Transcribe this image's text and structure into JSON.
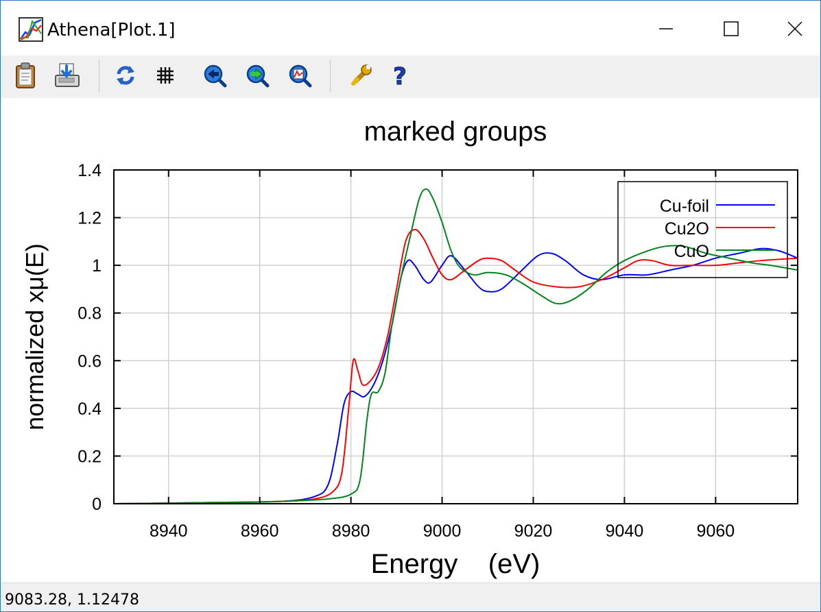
{
  "window": {
    "title": "Athena[Plot.1]",
    "controls": {
      "minimize_icon": "minimize-icon",
      "maximize_icon": "maximize-icon",
      "close_icon": "close-icon"
    }
  },
  "toolbar": {
    "buttons": [
      {
        "icon": "clipboard-icon"
      },
      {
        "icon": "save-export-icon"
      },
      {
        "icon": "refresh-icon"
      },
      {
        "icon": "grid-icon"
      },
      {
        "icon": "zoom-back-icon"
      },
      {
        "icon": "zoom-forward-icon"
      },
      {
        "icon": "zoom-reset-icon"
      },
      {
        "icon": "configure-wrench-icon"
      },
      {
        "icon": "help-icon"
      }
    ]
  },
  "chart_data": {
    "type": "line",
    "title": "marked groups",
    "xlabel": "Energy    (eV)",
    "ylabel": "normalized xμ(E)",
    "xlim": [
      8928,
      9078
    ],
    "ylim": [
      0,
      1.4
    ],
    "xticks": [
      8940,
      8960,
      8980,
      9000,
      9020,
      9040,
      9060
    ],
    "yticks": [
      0,
      0.2,
      0.4,
      0.6,
      0.8,
      1,
      1.2,
      1.4
    ],
    "ytick_labels": [
      "0",
      "0.2",
      "0.4",
      "0.6",
      "0.8",
      "1",
      "1.2",
      "1.4"
    ],
    "grid": true,
    "legend_position": "top-right",
    "series": [
      {
        "name": "Cu-foil",
        "color": "#0000ff",
        "points": [
          [
            8928,
            0
          ],
          [
            8950,
            0.005
          ],
          [
            8965,
            0.01
          ],
          [
            8972,
            0.03
          ],
          [
            8975,
            0.08
          ],
          [
            8977,
            0.25
          ],
          [
            8978.5,
            0.42
          ],
          [
            8980,
            0.47
          ],
          [
            8981.5,
            0.46
          ],
          [
            8983,
            0.45
          ],
          [
            8985,
            0.5
          ],
          [
            8987,
            0.6
          ],
          [
            8989,
            0.75
          ],
          [
            8991,
            0.95
          ],
          [
            8992.5,
            1.02
          ],
          [
            8994,
            1.0
          ],
          [
            8996,
            0.94
          ],
          [
            8997.5,
            0.93
          ],
          [
            9000,
            1.0
          ],
          [
            9002,
            1.04
          ],
          [
            9005,
            0.98
          ],
          [
            9008,
            0.91
          ],
          [
            9010,
            0.89
          ],
          [
            9013,
            0.9
          ],
          [
            9017,
            0.97
          ],
          [
            9021,
            1.04
          ],
          [
            9024,
            1.05
          ],
          [
            9027,
            1.02
          ],
          [
            9031,
            0.96
          ],
          [
            9035,
            0.94
          ],
          [
            9040,
            0.96
          ],
          [
            9045,
            0.96
          ],
          [
            9050,
            0.98
          ],
          [
            9055,
            1.0
          ],
          [
            9060,
            1.03
          ],
          [
            9065,
            1.05
          ],
          [
            9070,
            1.07
          ],
          [
            9074,
            1.06
          ],
          [
            9078,
            1.03
          ]
        ]
      },
      {
        "name": "Cu2O",
        "color": "#ff0000",
        "points": [
          [
            8928,
            0
          ],
          [
            8950,
            0.005
          ],
          [
            8965,
            0.01
          ],
          [
            8972,
            0.02
          ],
          [
            8976,
            0.05
          ],
          [
            8978,
            0.13
          ],
          [
            8979.5,
            0.4
          ],
          [
            8980.5,
            0.6
          ],
          [
            8981.5,
            0.56
          ],
          [
            8982.5,
            0.5
          ],
          [
            8984,
            0.51
          ],
          [
            8986,
            0.57
          ],
          [
            8988,
            0.7
          ],
          [
            8990,
            0.9
          ],
          [
            8992,
            1.1
          ],
          [
            8994,
            1.15
          ],
          [
            8996,
            1.11
          ],
          [
            8998,
            1.03
          ],
          [
            9000,
            0.96
          ],
          [
            9002,
            0.94
          ],
          [
            9005,
            0.98
          ],
          [
            9008,
            1.02
          ],
          [
            9010,
            1.03
          ],
          [
            9013,
            1.02
          ],
          [
            9016,
            0.98
          ],
          [
            9020,
            0.93
          ],
          [
            9025,
            0.91
          ],
          [
            9030,
            0.91
          ],
          [
            9035,
            0.94
          ],
          [
            9040,
            0.99
          ],
          [
            9043,
            1.02
          ],
          [
            9046,
            1.02
          ],
          [
            9050,
            1.0
          ],
          [
            9055,
            1.0
          ],
          [
            9060,
            1.0
          ],
          [
            9065,
            1.01
          ],
          [
            9070,
            1.02
          ],
          [
            9078,
            1.03
          ]
        ]
      },
      {
        "name": "CuO",
        "color": "#00851a",
        "points": [
          [
            8928,
            0
          ],
          [
            8950,
            0.004
          ],
          [
            8965,
            0.01
          ],
          [
            8975,
            0.02
          ],
          [
            8980,
            0.04
          ],
          [
            8982,
            0.1
          ],
          [
            8983.5,
            0.35
          ],
          [
            8984.5,
            0.46
          ],
          [
            8986,
            0.47
          ],
          [
            8987.5,
            0.55
          ],
          [
            8989,
            0.75
          ],
          [
            8991,
            0.95
          ],
          [
            8993,
            1.12
          ],
          [
            8995,
            1.28
          ],
          [
            8996.5,
            1.32
          ],
          [
            8998,
            1.28
          ],
          [
            9000,
            1.18
          ],
          [
            9002,
            1.06
          ],
          [
            9004,
            0.99
          ],
          [
            9007,
            0.96
          ],
          [
            9010,
            0.97
          ],
          [
            9014,
            0.96
          ],
          [
            9018,
            0.92
          ],
          [
            9022,
            0.87
          ],
          [
            9025,
            0.84
          ],
          [
            9028,
            0.85
          ],
          [
            9032,
            0.9
          ],
          [
            9036,
            0.97
          ],
          [
            9040,
            1.02
          ],
          [
            9045,
            1.06
          ],
          [
            9049,
            1.08
          ],
          [
            9053,
            1.08
          ],
          [
            9058,
            1.05
          ],
          [
            9063,
            1.03
          ],
          [
            9068,
            1.01
          ],
          [
            9072,
            1.0
          ],
          [
            9078,
            0.98
          ]
        ]
      }
    ]
  },
  "status": {
    "coords": "9083.28,  1.12478"
  }
}
